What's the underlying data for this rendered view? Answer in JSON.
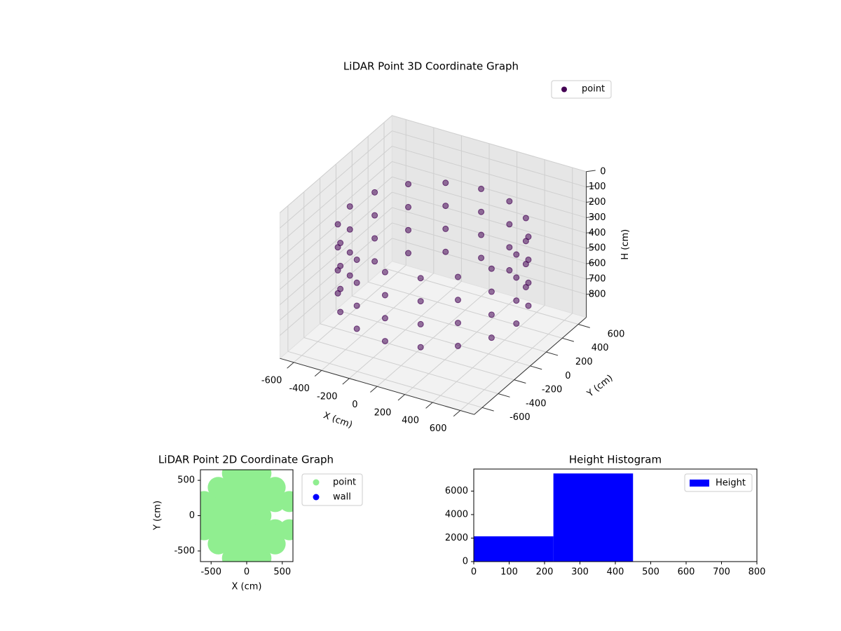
{
  "chart_data": [
    {
      "type": "scatter3d",
      "title": "LiDAR Point 3D Coordinate Graph",
      "xlabel": "X (cm)",
      "ylabel": "Y (cm)",
      "zlabel": "H (cm)",
      "xlim": [
        -700,
        700
      ],
      "ylim": [
        -700,
        700
      ],
      "zlim": [
        950,
        0
      ],
      "xticks": [
        -600,
        -400,
        -200,
        0,
        200,
        400,
        600
      ],
      "yticks": [
        -600,
        -400,
        -200,
        0,
        200,
        400,
        600
      ],
      "zticks": [
        0,
        100,
        200,
        300,
        400,
        500,
        600,
        700,
        800
      ],
      "grid": true,
      "legend": "upper right",
      "series": [
        {
          "name": "point",
          "color": "#440154",
          "x": [
            600,
            554,
            424,
            230,
            0,
            -230,
            -424,
            -554,
            -600,
            -554,
            -424,
            -230,
            0,
            230,
            424,
            554,
            600,
            554,
            424,
            230,
            0,
            -230,
            -424,
            -554,
            -600,
            -554,
            -424,
            -230,
            0,
            230,
            424,
            554,
            600,
            554,
            424,
            230,
            0,
            -230,
            -424,
            -554,
            -600,
            -554,
            -424,
            -230,
            0,
            230,
            424,
            554,
            600,
            554,
            424,
            230,
            0,
            -230,
            -424,
            -554,
            -600,
            -554,
            -424,
            -230,
            0,
            230,
            424,
            554
          ],
          "y": [
            0,
            230,
            424,
            554,
            600,
            554,
            424,
            230,
            0,
            -230,
            -424,
            -554,
            -600,
            -554,
            -424,
            -230,
            0,
            230,
            424,
            554,
            600,
            554,
            424,
            230,
            0,
            -230,
            -424,
            -554,
            -600,
            -554,
            -424,
            -230,
            0,
            230,
            424,
            554,
            600,
            554,
            424,
            230,
            0,
            -230,
            -424,
            -554,
            -600,
            -554,
            -424,
            -230,
            0,
            230,
            424,
            554,
            600,
            554,
            424,
            230,
            0,
            -230,
            -424,
            -554,
            -600,
            -554,
            -424,
            -230
          ],
          "z": [
            250,
            250,
            250,
            250,
            250,
            250,
            250,
            250,
            250,
            250,
            250,
            250,
            250,
            250,
            250,
            250,
            400,
            400,
            400,
            400,
            400,
            400,
            400,
            400,
            400,
            400,
            400,
            400,
            400,
            400,
            400,
            400,
            550,
            550,
            550,
            550,
            550,
            550,
            550,
            550,
            550,
            550,
            550,
            550,
            550,
            550,
            550,
            550,
            700,
            700,
            700,
            700,
            700,
            700,
            700,
            700,
            700,
            700,
            700,
            700,
            700,
            700,
            700,
            700
          ]
        }
      ]
    },
    {
      "type": "scatter",
      "title": "LiDAR Point 2D Coordinate Graph",
      "xlabel": "X (cm)",
      "ylabel": "Y (cm)",
      "xlim": [
        -650,
        650
      ],
      "ylim": [
        -650,
        650
      ],
      "xticks": [
        -500,
        0,
        500
      ],
      "yticks": [
        -500,
        0,
        500
      ],
      "legend": "outside right",
      "series": [
        {
          "name": "point",
          "color": "#90ee90",
          "x": [
            -600,
            -600,
            -600,
            -400,
            -400,
            -400,
            -400,
            -400,
            -200,
            -200,
            -200,
            -200,
            -200,
            -200,
            -200,
            0,
            0,
            0,
            0,
            0,
            0,
            0,
            200,
            200,
            200,
            200,
            200,
            200,
            200,
            400,
            400,
            400,
            400,
            600,
            600
          ],
          "y": [
            -200,
            0,
            200,
            -400,
            -200,
            0,
            200,
            400,
            -600,
            -400,
            -200,
            0,
            200,
            400,
            600,
            -600,
            -400,
            -200,
            0,
            200,
            400,
            600,
            -600,
            -400,
            -200,
            0,
            200,
            400,
            600,
            -400,
            -200,
            200,
            400,
            -200,
            200
          ]
        },
        {
          "name": "wall",
          "color": "#0000ff",
          "x": [],
          "y": []
        }
      ]
    },
    {
      "type": "histogram",
      "title": "Height Histogram",
      "bins": [
        0,
        225,
        450,
        675,
        900
      ],
      "counts": [
        2150,
        7500,
        0,
        0
      ],
      "xlim": [
        0,
        800
      ],
      "ylim": [
        0,
        7875
      ],
      "xticks": [
        0,
        100,
        200,
        300,
        400,
        500,
        600,
        700,
        800
      ],
      "yticks": [
        0,
        2000,
        4000,
        6000
      ],
      "series_name": "Height",
      "color": "#0000ff",
      "legend": "upper right"
    }
  ]
}
